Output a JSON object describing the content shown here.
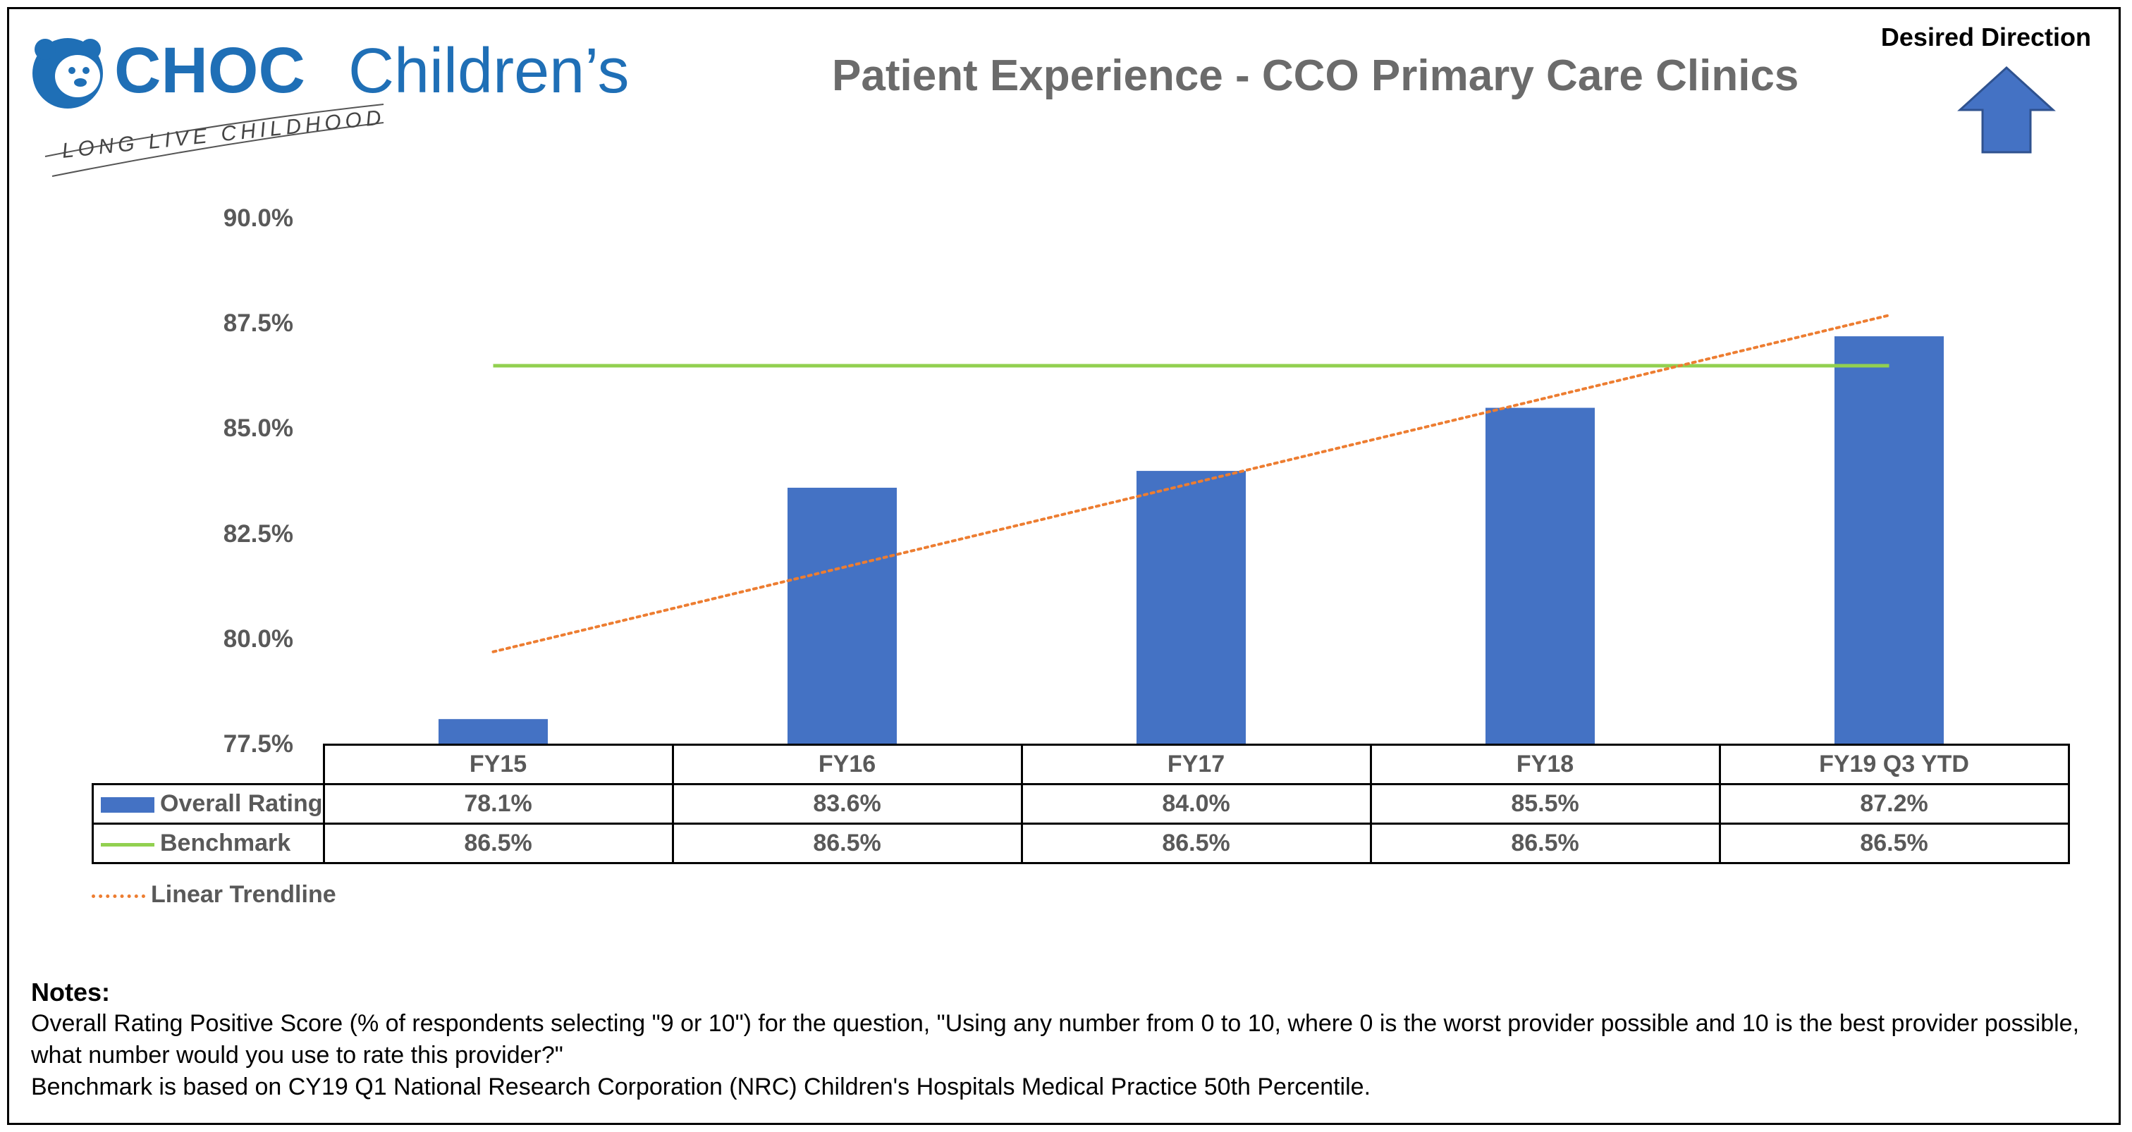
{
  "logo": {
    "brand_text": "CHOC",
    "brand_text2": "Children’s",
    "tagline": "LONG LIVE CHILDHOOD",
    "color": "#1f6fb6"
  },
  "header": {
    "title": "Patient Experience - CCO Primary Care Clinics",
    "direction_label": "Desired Direction",
    "direction_icon": "up-arrow-icon"
  },
  "chart_data": {
    "type": "bar",
    "title": "Patient Experience - CCO Primary Care Clinics",
    "categories": [
      "FY15",
      "FY16",
      "FY17",
      "FY18",
      "FY19 Q3 YTD"
    ],
    "series": [
      {
        "name": "Overall Rating",
        "kind": "bar",
        "color": "#4472c4",
        "values": [
          78.1,
          83.6,
          84.0,
          85.5,
          87.2
        ],
        "labels": [
          "78.1%",
          "83.6%",
          "84.0%",
          "85.5%",
          "87.2%"
        ]
      },
      {
        "name": "Benchmark",
        "kind": "line",
        "color": "#92d050",
        "values": [
          86.5,
          86.5,
          86.5,
          86.5,
          86.5
        ],
        "labels": [
          "86.5%",
          "86.5%",
          "86.5%",
          "86.5%",
          "86.5%"
        ]
      },
      {
        "name": "Linear Trendline",
        "kind": "trendline",
        "color": "#ed7d31",
        "values": [
          79.7,
          81.7,
          83.7,
          85.7,
          87.7
        ]
      }
    ],
    "ylim": [
      77.5,
      90.0
    ],
    "yticks": [
      90.0,
      87.5,
      85.0,
      82.5,
      80.0,
      77.5
    ],
    "ytick_labels": [
      "90.0%",
      "87.5%",
      "85.0%",
      "82.5%",
      "80.0%",
      "77.5%"
    ],
    "xlabel": "",
    "ylabel": "",
    "legend": "data table below chart",
    "grid": false
  },
  "notes": {
    "heading": "Notes:",
    "line1": "Overall Rating Positive Score (% of respondents selecting \"9 or 10\") for the question, \"Using any number from 0 to 10, where 0 is the worst provider possible and 10 is the best provider possible, what number would you use to rate this provider?\"",
    "line2": "Benchmark is based on CY19 Q1 National Research Corporation (NRC) Children's Hospitals Medical Practice 50th Percentile."
  }
}
